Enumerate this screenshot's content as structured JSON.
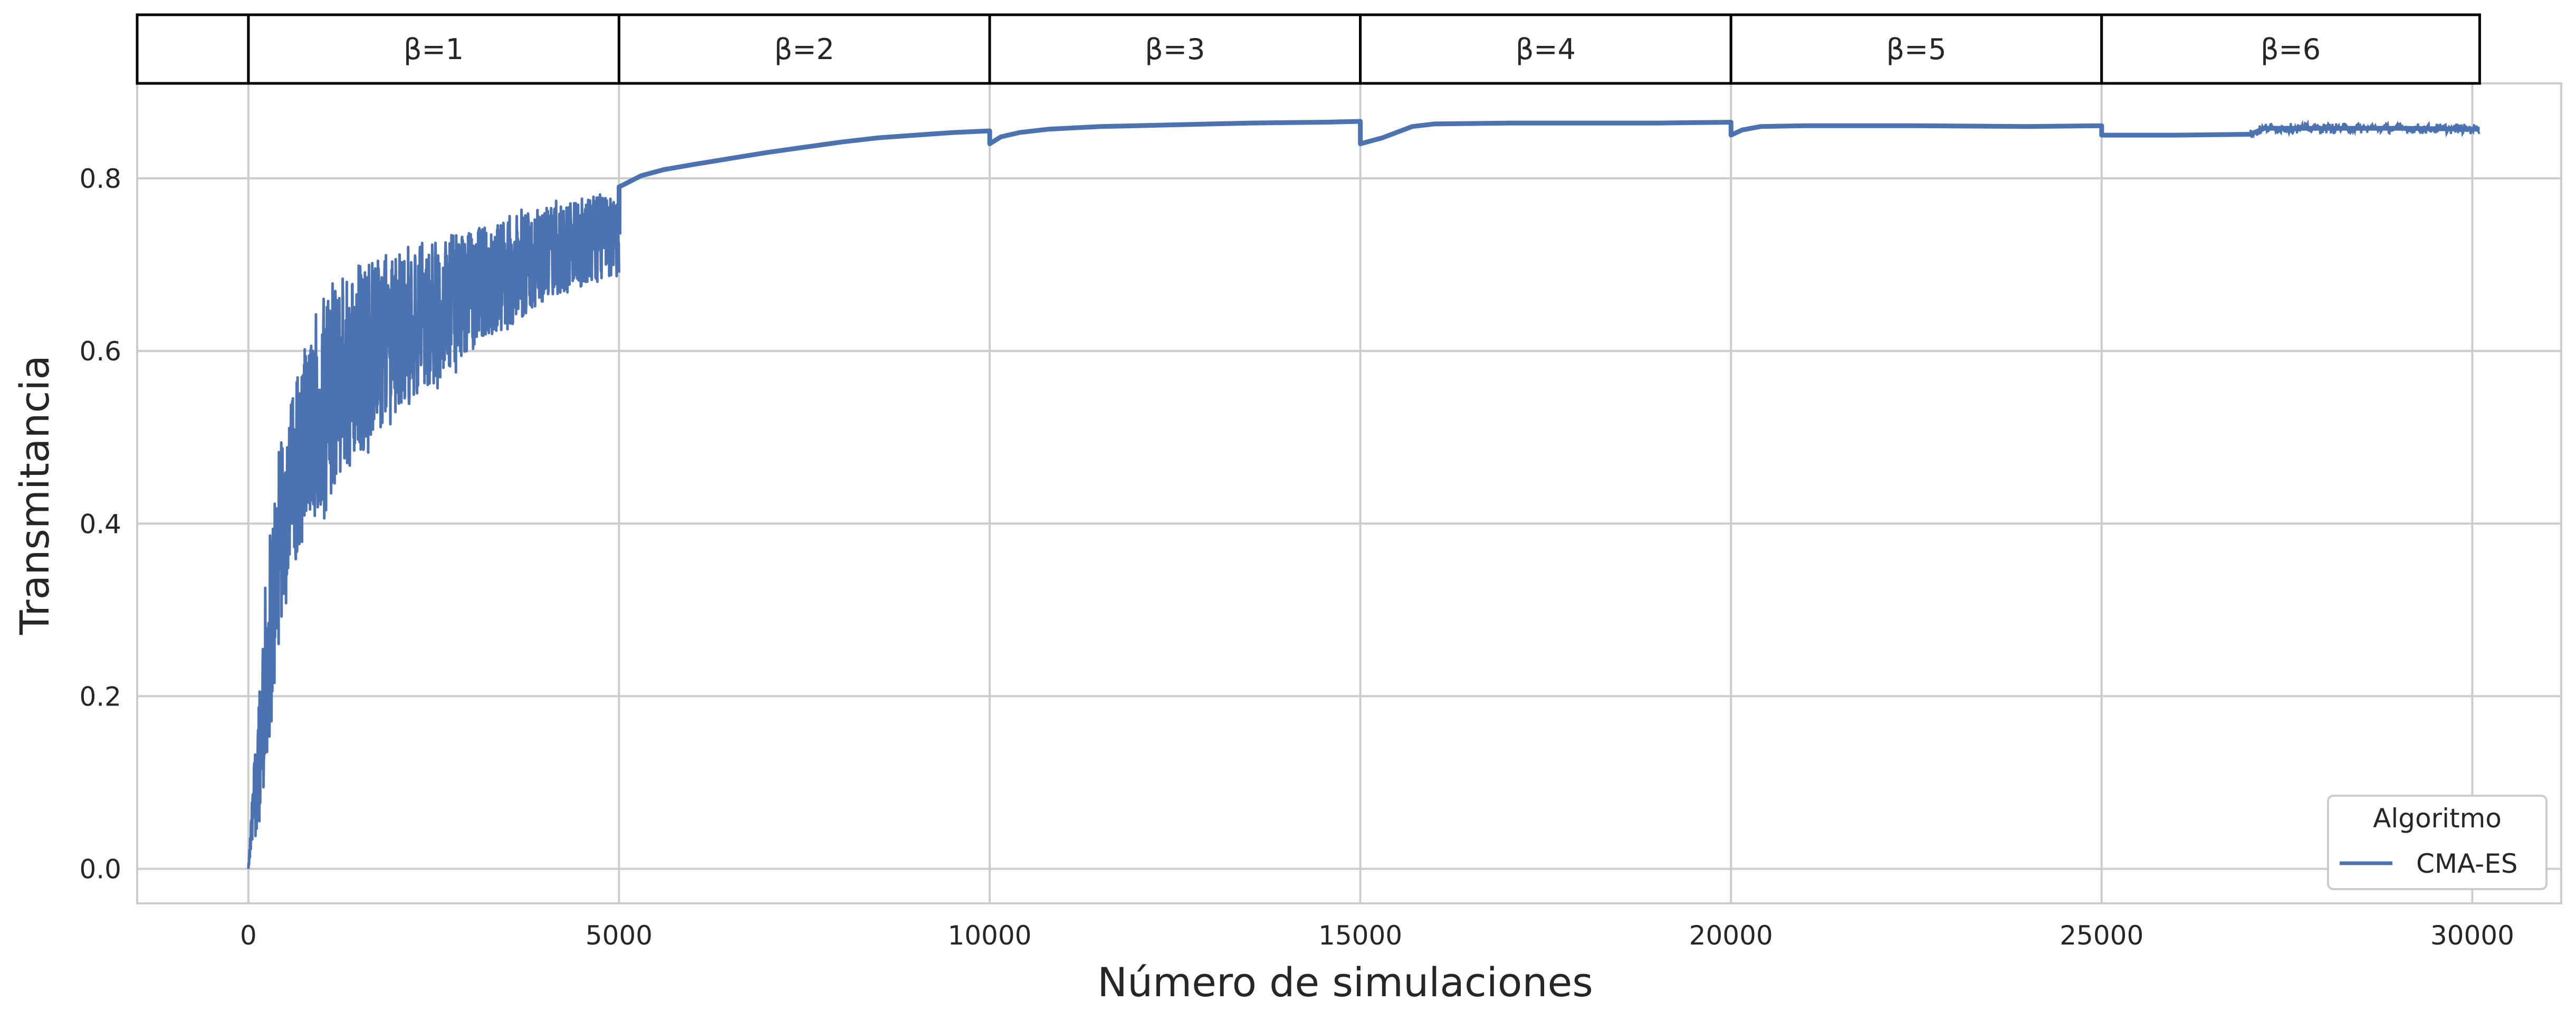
{
  "chart_data": {
    "type": "line",
    "xlabel": "Número de simulaciones",
    "ylabel": "Transmitancia",
    "xlim": [
      -1500,
      31200
    ],
    "ylim": [
      -0.04,
      0.91
    ],
    "xticks": [
      0,
      5000,
      10000,
      15000,
      20000,
      25000,
      30000
    ],
    "xtick_labels": [
      "0",
      "5000",
      "10000",
      "15000",
      "20000",
      "25000",
      "30000"
    ],
    "yticks": [
      0.0,
      0.2,
      0.4,
      0.6,
      0.8
    ],
    "ytick_labels": [
      "0.0",
      "0.2",
      "0.4",
      "0.6",
      "0.8"
    ],
    "grid": true,
    "legend": {
      "title": "Algoritmo",
      "position": "lower-right"
    },
    "facets": [
      {
        "label": "β=1",
        "x_range": [
          0,
          5000
        ]
      },
      {
        "label": "β=2",
        "x_range": [
          5000,
          10000
        ]
      },
      {
        "label": "β=3",
        "x_range": [
          10000,
          15000
        ]
      },
      {
        "label": "β=4",
        "x_range": [
          15000,
          20000
        ]
      },
      {
        "label": "β=5",
        "x_range": [
          20000,
          25000
        ]
      },
      {
        "label": "β=6",
        "x_range": [
          25000,
          30100
        ]
      }
    ],
    "series": [
      {
        "name": "CMA-ES",
        "color": "#4c72b0",
        "points": [
          [
            0,
            0.0
          ],
          [
            50,
            0.05
          ],
          [
            100,
            0.1
          ],
          [
            150,
            0.15
          ],
          [
            200,
            0.2
          ],
          [
            250,
            0.24
          ],
          [
            300,
            0.28
          ],
          [
            400,
            0.36
          ],
          [
            500,
            0.42
          ],
          [
            600,
            0.45
          ],
          [
            700,
            0.48
          ],
          [
            800,
            0.5
          ],
          [
            900,
            0.52
          ],
          [
            1000,
            0.54
          ],
          [
            1200,
            0.56
          ],
          [
            1400,
            0.58
          ],
          [
            1600,
            0.6
          ],
          [
            1800,
            0.61
          ],
          [
            2000,
            0.62
          ],
          [
            2250,
            0.63
          ],
          [
            2500,
            0.645
          ],
          [
            2750,
            0.66
          ],
          [
            3000,
            0.67
          ],
          [
            3250,
            0.68
          ],
          [
            3500,
            0.69
          ],
          [
            3750,
            0.7
          ],
          [
            4000,
            0.71
          ],
          [
            4250,
            0.72
          ],
          [
            4500,
            0.725
          ],
          [
            4750,
            0.73
          ],
          [
            5000,
            0.735
          ],
          [
            5001,
            0.79
          ],
          [
            5300,
            0.803
          ],
          [
            5600,
            0.81
          ],
          [
            6000,
            0.816
          ],
          [
            6500,
            0.823
          ],
          [
            7000,
            0.83
          ],
          [
            7500,
            0.836
          ],
          [
            8000,
            0.842
          ],
          [
            8500,
            0.847
          ],
          [
            9000,
            0.85
          ],
          [
            9500,
            0.853
          ],
          [
            10000,
            0.855
          ],
          [
            10001,
            0.84
          ],
          [
            10150,
            0.848
          ],
          [
            10400,
            0.853
          ],
          [
            10800,
            0.857
          ],
          [
            11500,
            0.86
          ],
          [
            12500,
            0.862
          ],
          [
            13500,
            0.864
          ],
          [
            14500,
            0.865
          ],
          [
            15000,
            0.866
          ],
          [
            15001,
            0.84
          ],
          [
            15300,
            0.847
          ],
          [
            15700,
            0.86
          ],
          [
            16000,
            0.863
          ],
          [
            17000,
            0.864
          ],
          [
            18000,
            0.864
          ],
          [
            19000,
            0.864
          ],
          [
            20000,
            0.865
          ],
          [
            20001,
            0.85
          ],
          [
            20150,
            0.856
          ],
          [
            20400,
            0.86
          ],
          [
            21000,
            0.861
          ],
          [
            22500,
            0.861
          ],
          [
            24000,
            0.86
          ],
          [
            25000,
            0.861
          ],
          [
            25001,
            0.85
          ],
          [
            26000,
            0.85
          ],
          [
            27000,
            0.851
          ],
          [
            27200,
            0.858
          ],
          [
            28000,
            0.858
          ],
          [
            29000,
            0.858
          ],
          [
            30000,
            0.857
          ],
          [
            30100,
            0.857
          ]
        ],
        "noise_envelope": [
          [
            0,
            0.0,
            0.0
          ],
          [
            100,
            0.02,
            0.16
          ],
          [
            200,
            0.08,
            0.3
          ],
          [
            300,
            0.14,
            0.42
          ],
          [
            400,
            0.22,
            0.48
          ],
          [
            500,
            0.3,
            0.52
          ],
          [
            600,
            0.33,
            0.56
          ],
          [
            800,
            0.38,
            0.62
          ],
          [
            1000,
            0.4,
            0.66
          ],
          [
            1200,
            0.44,
            0.69
          ],
          [
            1500,
            0.47,
            0.71
          ],
          [
            2000,
            0.52,
            0.72
          ],
          [
            2500,
            0.55,
            0.73
          ],
          [
            3000,
            0.59,
            0.745
          ],
          [
            3500,
            0.62,
            0.76
          ],
          [
            4000,
            0.65,
            0.775
          ],
          [
            4500,
            0.67,
            0.785
          ],
          [
            5000,
            0.68,
            0.79
          ]
        ],
        "fine_noise_ranges": [
          [
            27000,
            30100,
            0.006
          ]
        ]
      }
    ]
  }
}
